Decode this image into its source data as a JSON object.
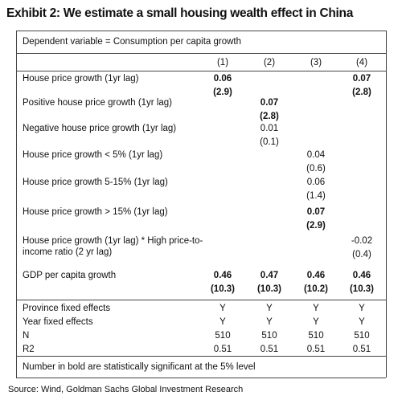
{
  "header": {
    "title": "Exhibit 2: We estimate a small housing wealth effect in China",
    "subtitle": "Dependent variable = Consumption per capita growth"
  },
  "table": {
    "columns": [
      "(1)",
      "(2)",
      "(3)",
      "(4)"
    ],
    "rows": [
      {
        "label": "House price growth (1yr lag)",
        "cells": [
          {
            "coef": "0.06",
            "se": "(2.9)",
            "bold": true
          },
          null,
          null,
          {
            "coef": "0.07",
            "se": "(2.8)",
            "bold": true
          }
        ]
      },
      {
        "label": "Positive house price growth (1yr lag)",
        "cells": [
          null,
          {
            "coef": "0.07",
            "se": "(2.8)",
            "bold": true
          },
          null,
          null
        ]
      },
      {
        "label": "Negative house price growth (1yr lag)",
        "cells": [
          null,
          {
            "coef": "0.01",
            "se": "(0.1)",
            "bold": false
          },
          null,
          null
        ]
      },
      {
        "label": "House price growth < 5% (1yr lag)",
        "cells": [
          null,
          null,
          {
            "coef": "0.04",
            "se": "(0.6)",
            "bold": false
          },
          null
        ]
      },
      {
        "label": "House price growth 5-15% (1yr lag)",
        "cells": [
          null,
          null,
          {
            "coef": "0.06",
            "se": "(1.4)",
            "bold": false
          },
          null
        ]
      },
      {
        "label": "House price growth > 15% (1yr lag)",
        "cells": [
          null,
          null,
          {
            "coef": "0.07",
            "se": "(2.9)",
            "bold": true
          },
          null
        ]
      },
      {
        "label": "House price growth (1yr lag) * High price-to-income ratio (2 yr lag)",
        "cells": [
          null,
          null,
          null,
          {
            "coef": "-0.02",
            "se": "(0.4)",
            "bold": false
          }
        ]
      },
      {
        "label": "GDP per capita growth",
        "cells": [
          {
            "coef": "0.46",
            "se": "(10.3)",
            "bold": true
          },
          {
            "coef": "0.47",
            "se": "(10.3)",
            "bold": true
          },
          {
            "coef": "0.46",
            "se": "(10.2)",
            "bold": true
          },
          {
            "coef": "0.46",
            "se": "(10.3)",
            "bold": true
          }
        ]
      }
    ],
    "stats": [
      {
        "label": "Province fixed effects",
        "cells": [
          "Y",
          "Y",
          "Y",
          "Y"
        ]
      },
      {
        "label": "Year fixed effects",
        "cells": [
          "Y",
          "Y",
          "Y",
          "Y"
        ]
      },
      {
        "label": "N",
        "cells": [
          "510",
          "510",
          "510",
          "510"
        ]
      },
      {
        "label": "R2",
        "cells": [
          "0.51",
          "0.51",
          "0.51",
          "0.51"
        ]
      }
    ]
  },
  "footer": {
    "note": "Number in bold are statistically significant at the 5% level",
    "source": "Source: Wind, Goldman Sachs Global Investment Research"
  }
}
